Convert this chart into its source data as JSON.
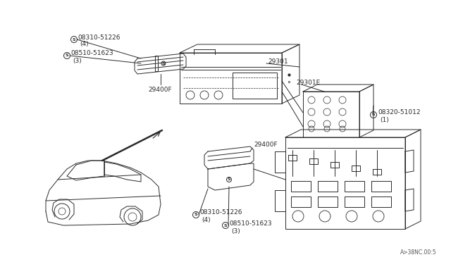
{
  "bg_color": "#f5f5f0",
  "line_color": "#2a2a2a",
  "text_color": "#2a2a2a",
  "fig_width": 6.4,
  "fig_height": 3.72,
  "dpi": 100,
  "watermark": "A>38NC.00:5",
  "labels": {
    "s08310_top": "08310-51226",
    "s08310_top_sub": "(4)",
    "s08510_top": "08510-51623",
    "s08510_top_sub": "(3)",
    "lbl_29400F_top": "29400F",
    "lbl_29301": "29301",
    "lbl_29301E": "29301E",
    "s08320": "08320-51012",
    "s08320_sub": "(1)",
    "lbl_29400F_bot": "29400F",
    "s08310_bot": "08310-51226",
    "s08310_bot_sub": "(4)",
    "s08510_bot": "08510-51623",
    "s08510_bot_sub": "(3)"
  }
}
